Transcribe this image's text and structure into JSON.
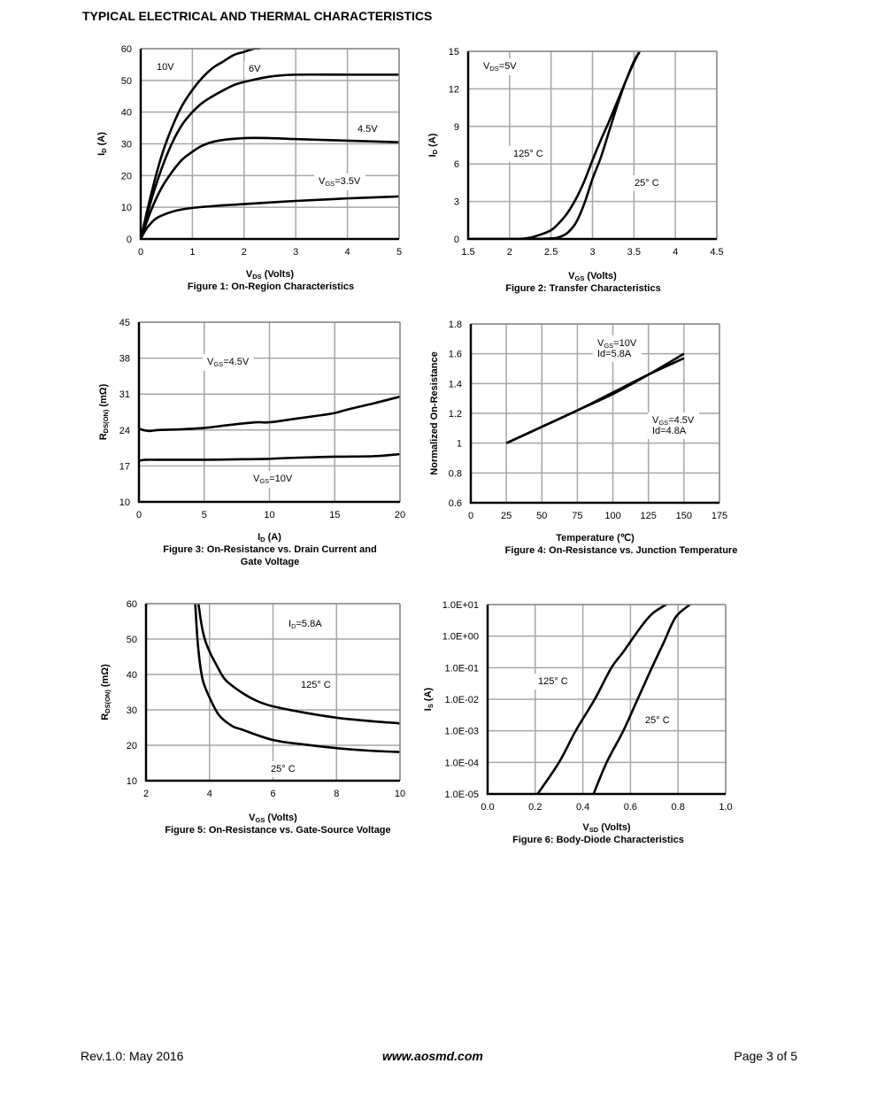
{
  "header": {
    "title": "TYPICAL ELECTRICAL AND THERMAL CHARACTERISTICS"
  },
  "footer": {
    "revision": "Rev.1.0: May 2016",
    "website": "www.aosmd.com",
    "page": "Page 3 of 5"
  },
  "chart_data": [
    {
      "id": "fig1",
      "type": "line",
      "title": "Figure 1: On-Region Characteristics",
      "xlabel": {
        "main": "V",
        "sub": "DS",
        "rest": " (Volts)"
      },
      "ylabel": {
        "main": "I",
        "sub": "D",
        "rest": " (A)"
      },
      "xlim": [
        0,
        5
      ],
      "ylim": [
        0,
        60
      ],
      "yscale": "linear",
      "xticks": [
        "0",
        "1",
        "2",
        "3",
        "4",
        "5"
      ],
      "yticks": [
        "0",
        "10",
        "20",
        "30",
        "40",
        "50",
        "60"
      ],
      "grid": true,
      "series": [
        {
          "name": "10V",
          "x": [
            0,
            0.2,
            0.4,
            0.6,
            0.8,
            1.0,
            1.2,
            1.4,
            1.6,
            1.8,
            2.0,
            2.2,
            2.3
          ],
          "y": [
            0,
            14,
            26,
            35,
            42,
            47,
            51,
            54,
            56,
            58,
            59,
            60,
            60
          ]
        },
        {
          "name": "6V",
          "x": [
            0,
            0.2,
            0.4,
            0.6,
            0.8,
            1.0,
            1.2,
            1.5,
            1.8,
            2.0,
            2.5,
            3.0,
            4.0,
            5.0
          ],
          "y": [
            0,
            12,
            22,
            30,
            36,
            40,
            43,
            46,
            48.5,
            49.5,
            51.2,
            51.8,
            51.8,
            51.8
          ]
        },
        {
          "name": "4.5V",
          "x": [
            0,
            0.2,
            0.4,
            0.6,
            0.8,
            1.0,
            1.2,
            1.5,
            2.0,
            2.5,
            3.0,
            4.0,
            5.0
          ],
          "y": [
            0,
            9,
            16,
            21,
            25,
            27.5,
            29.5,
            31,
            31.8,
            31.8,
            31.5,
            31,
            30.5
          ]
        },
        {
          "name": "VGS=3.5V",
          "x": [
            0,
            0.1,
            0.2,
            0.3,
            0.5,
            0.7,
            1.0,
            1.5,
            2.0,
            3.0,
            4.0,
            5.0
          ],
          "y": [
            0,
            3,
            5,
            6.5,
            8,
            9,
            9.8,
            10.5,
            11,
            12,
            12.8,
            13.4
          ]
        }
      ],
      "annotations": [
        {
          "text": "10V"
        },
        {
          "text": "6V"
        },
        {
          "text": "4.5V"
        },
        {
          "text": "V",
          "sub": "GS",
          "rest": "=3.5V"
        }
      ]
    },
    {
      "id": "fig2",
      "type": "line",
      "title": "Figure 2: Transfer Characteristics",
      "xlabel": {
        "main": "V",
        "sub": "GS",
        "rest": " (Volts)"
      },
      "ylabel": {
        "main": "I",
        "sub": "D",
        "rest": " (A)"
      },
      "xlim": [
        1.5,
        4.5
      ],
      "ylim": [
        0,
        15
      ],
      "yscale": "linear",
      "xticks": [
        "1.5",
        "2",
        "2.5",
        "3",
        "3.5",
        "4",
        "4.5"
      ],
      "yticks": [
        "0",
        "3",
        "6",
        "9",
        "12",
        "15"
      ],
      "grid": true,
      "series": [
        {
          "name": "125° C",
          "x": [
            1.5,
            2.0,
            2.2,
            2.35,
            2.5,
            2.6,
            2.7,
            2.8,
            2.9,
            3.0,
            3.1,
            3.2,
            3.3,
            3.4,
            3.5,
            3.57
          ],
          "y": [
            0,
            0,
            0.05,
            0.3,
            0.7,
            1.3,
            2.1,
            3.2,
            4.6,
            6.3,
            7.9,
            9.4,
            11.0,
            12.6,
            14.2,
            15
          ]
        },
        {
          "name": "25° C",
          "x": [
            1.5,
            2.2,
            2.5,
            2.6,
            2.7,
            2.8,
            2.9,
            3.0,
            3.1,
            3.2,
            3.3,
            3.4,
            3.5,
            3.57
          ],
          "y": [
            0,
            0,
            0.05,
            0.15,
            0.5,
            1.3,
            2.8,
            4.8,
            6.5,
            8.6,
            10.7,
            12.6,
            14.1,
            15
          ]
        }
      ],
      "annotations": [
        {
          "text": "V",
          "sub": "DS",
          "rest": "=5V"
        },
        {
          "text": "125° C"
        },
        {
          "text": "25° C"
        }
      ]
    },
    {
      "id": "fig3",
      "type": "line",
      "title": "Figure 3: On-Resistance vs. Drain Current and",
      "title2": "Gate Voltage",
      "xlabel": {
        "main": "I",
        "sub": "D",
        "rest": " (A)"
      },
      "ylabel": {
        "main": "R",
        "sub": "DS(ON)",
        "rest": " (mΩ)"
      },
      "xlim": [
        0,
        20
      ],
      "ylim": [
        10,
        45
      ],
      "yscale": "linear",
      "xticks": [
        "0",
        "5",
        "10",
        "15",
        "20"
      ],
      "yticks": [
        "10",
        "17",
        "24",
        "31",
        "38",
        "45"
      ],
      "grid": true,
      "series": [
        {
          "name": "VGS=4.5V",
          "x": [
            0,
            0.3,
            0.8,
            1.5,
            3,
            5,
            7,
            9,
            10,
            12,
            14,
            15,
            16,
            18,
            20
          ],
          "y": [
            24.3,
            24,
            23.8,
            24,
            24.1,
            24.4,
            25,
            25.5,
            25.5,
            26.2,
            26.9,
            27.3,
            28,
            29.2,
            30.5
          ]
        },
        {
          "name": "VGS=10V",
          "x": [
            0,
            0.5,
            2,
            5,
            8,
            10,
            12,
            15,
            18,
            20
          ],
          "y": [
            18,
            18.2,
            18.2,
            18.2,
            18.3,
            18.4,
            18.6,
            18.8,
            18.9,
            19.3
          ]
        }
      ],
      "annotations": [
        {
          "text": "V",
          "sub": "GS",
          "rest": "=4.5V"
        },
        {
          "text": "V",
          "sub": "GS",
          "rest": "=10V"
        }
      ]
    },
    {
      "id": "fig4",
      "type": "line",
      "title": "Figure 4: On-Resistance vs. Junction Temperature",
      "xlabel": {
        "main": "Temperature (℃)",
        "sub": "",
        "rest": ""
      },
      "ylabel": {
        "main": "Normalized On-Resistance",
        "sub": "",
        "rest": ""
      },
      "xlim": [
        0,
        175
      ],
      "ylim": [
        0.6,
        1.8
      ],
      "yscale": "linear",
      "xticks": [
        "0",
        "25",
        "50",
        "75",
        "100",
        "125",
        "150",
        "175"
      ],
      "yticks": [
        "0.6",
        "0.8",
        "1",
        "1.2",
        "1.4",
        "1.6",
        "1.8"
      ],
      "grid": true,
      "series": [
        {
          "name": "VGS=10V Id=5.8A",
          "x": [
            25,
            50,
            75,
            100,
            125,
            150
          ],
          "y": [
            1.0,
            1.11,
            1.22,
            1.33,
            1.46,
            1.6
          ]
        },
        {
          "name": "VGS=4.5V Id=4.8A",
          "x": [
            25,
            50,
            75,
            100,
            125,
            150
          ],
          "y": [
            1.0,
            1.11,
            1.22,
            1.34,
            1.46,
            1.57
          ]
        }
      ],
      "annotations": [
        {
          "text": "V",
          "sub": "GS",
          "rest": "=10V",
          "line2": "Id=5.8A"
        },
        {
          "text": "V",
          "sub": "GS",
          "rest": "=4.5V",
          "line2": "Id=4.8A"
        }
      ]
    },
    {
      "id": "fig5",
      "type": "line",
      "title": "Figure 5: On-Resistance vs. Gate-Source Voltage",
      "xlabel": {
        "main": "V",
        "sub": "GS",
        "rest": " (Volts)"
      },
      "ylabel": {
        "main": "R",
        "sub": "DS(ON)",
        "rest": " (mΩ)"
      },
      "xlim": [
        2,
        10
      ],
      "ylim": [
        10,
        60
      ],
      "yscale": "linear",
      "xticks": [
        "2",
        "4",
        "6",
        "8",
        "10"
      ],
      "yticks": [
        "10",
        "20",
        "30",
        "40",
        "50",
        "60"
      ],
      "grid": true,
      "series": [
        {
          "name": "125° C",
          "x": [
            3.65,
            3.75,
            3.85,
            4.0,
            4.2,
            4.5,
            5.0,
            5.5,
            6.0,
            7.0,
            8.0,
            9.0,
            10.0
          ],
          "y": [
            60,
            54,
            50,
            46.5,
            43,
            38.5,
            35,
            32.5,
            31,
            29.2,
            27.8,
            26.9,
            26.2
          ]
        },
        {
          "name": "25° C",
          "x": [
            3.55,
            3.62,
            3.7,
            3.8,
            4.0,
            4.3,
            4.7,
            5.0,
            6.0,
            7.0,
            8.0,
            9.0,
            10.0
          ],
          "y": [
            60,
            50,
            43,
            38,
            33.5,
            28.5,
            25.5,
            24.5,
            21.5,
            20.2,
            19.2,
            18.5,
            18.1
          ]
        }
      ],
      "annotations": [
        {
          "text": "I",
          "sub": "D",
          "rest": "=5.8A"
        },
        {
          "text": "125° C"
        },
        {
          "text": "25° C"
        }
      ]
    },
    {
      "id": "fig6",
      "type": "line",
      "title": "Figure 6: Body-Diode Characteristics",
      "xlabel": {
        "main": "V",
        "sub": "SD",
        "rest": " (Volts)"
      },
      "ylabel": {
        "main": "I",
        "sub": "S",
        "rest": " (A)"
      },
      "xlim": [
        0,
        1.0
      ],
      "ylim": [
        -5,
        1
      ],
      "yscale": "log10",
      "xticks": [
        "0.0",
        "0.2",
        "0.4",
        "0.6",
        "0.8",
        "1.0"
      ],
      "yticks": [
        "1.0E-05",
        "1.0E-04",
        "1.0E-03",
        "1.0E-02",
        "1.0E-01",
        "1.0E+00",
        "1.0E+01"
      ],
      "grid": true,
      "series": [
        {
          "name": "125° C",
          "x": [
            0.21,
            0.3,
            0.37,
            0.45,
            0.52,
            0.57,
            0.64,
            0.69,
            0.75
          ],
          "y": [
            -5,
            -4,
            -3,
            -2,
            -1,
            -0.5,
            0.25,
            0.7,
            1.0
          ]
        },
        {
          "name": "25° C",
          "x": [
            0.445,
            0.5,
            0.57,
            0.63,
            0.69,
            0.74,
            0.79,
            0.85
          ],
          "y": [
            -5,
            -4,
            -3,
            -2,
            -1,
            -0.2,
            0.6,
            1.0
          ]
        }
      ],
      "annotations": [
        {
          "text": "125° C"
        },
        {
          "text": "25° C"
        }
      ]
    }
  ]
}
